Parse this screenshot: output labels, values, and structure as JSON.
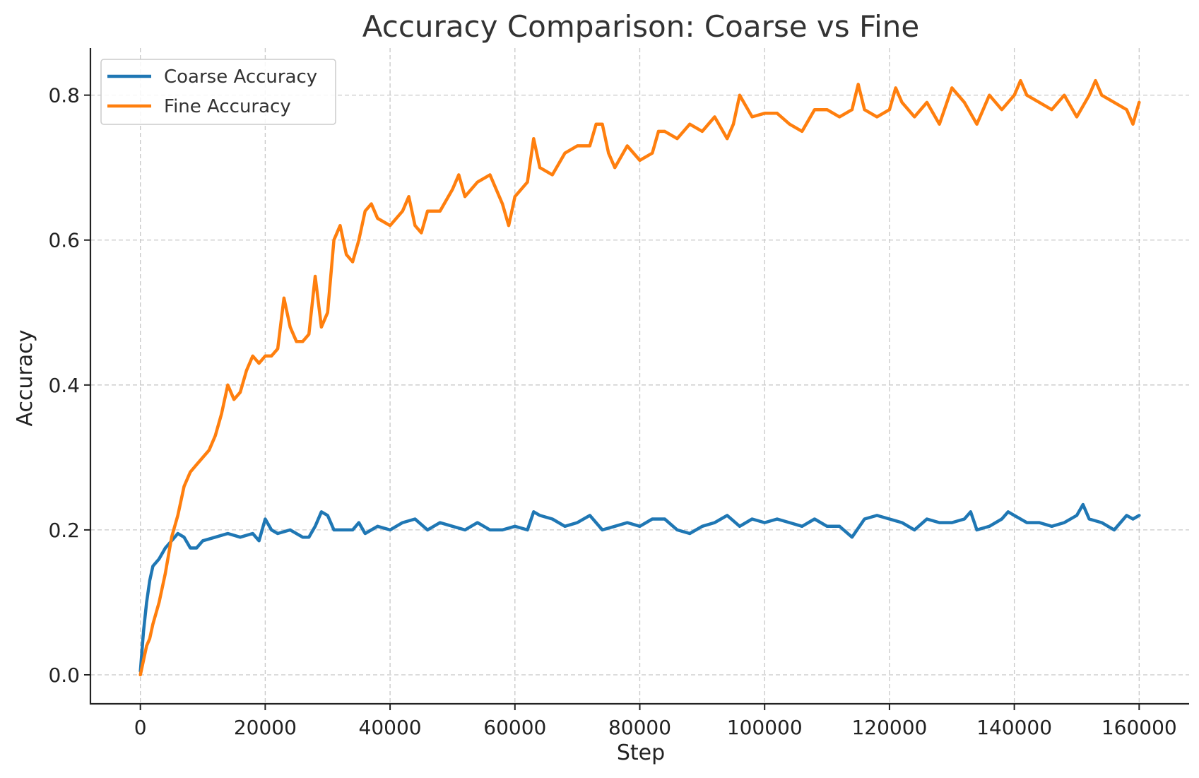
{
  "chart_data": {
    "type": "line",
    "title": "Accuracy Comparison: Coarse vs Fine",
    "xlabel": "Step",
    "ylabel": "Accuracy",
    "xlim": [
      -8000,
      168000
    ],
    "ylim": [
      -0.04,
      0.865
    ],
    "xticks": [
      0,
      20000,
      40000,
      60000,
      80000,
      100000,
      120000,
      140000,
      160000
    ],
    "xtick_labels": [
      "0",
      "20000",
      "40000",
      "60000",
      "80000",
      "100000",
      "120000",
      "140000",
      "160000"
    ],
    "yticks": [
      0.0,
      0.2,
      0.4,
      0.6,
      0.8
    ],
    "ytick_labels": [
      "0.0",
      "0.2",
      "0.4",
      "0.6",
      "0.8"
    ],
    "grid": true,
    "legend": "top-left",
    "series": [
      {
        "name": "Coarse Accuracy",
        "color": "#1f77b4",
        "x": [
          0,
          500,
          1000,
          1500,
          2000,
          3000,
          4000,
          5000,
          6000,
          7000,
          8000,
          9000,
          10000,
          12000,
          14000,
          16000,
          18000,
          19000,
          20000,
          21000,
          22000,
          24000,
          26000,
          27000,
          28000,
          29000,
          30000,
          31000,
          32000,
          34000,
          35000,
          36000,
          38000,
          40000,
          42000,
          44000,
          46000,
          48000,
          50000,
          52000,
          54000,
          56000,
          58000,
          60000,
          62000,
          63000,
          64000,
          66000,
          68000,
          70000,
          72000,
          74000,
          76000,
          78000,
          80000,
          82000,
          84000,
          86000,
          88000,
          90000,
          92000,
          94000,
          96000,
          98000,
          100000,
          102000,
          104000,
          106000,
          108000,
          110000,
          112000,
          114000,
          116000,
          118000,
          120000,
          122000,
          124000,
          126000,
          128000,
          130000,
          132000,
          133000,
          134000,
          136000,
          138000,
          139000,
          140000,
          142000,
          144000,
          146000,
          148000,
          150000,
          151000,
          152000,
          154000,
          156000,
          158000,
          159000,
          160000
        ],
        "y": [
          0.005,
          0.06,
          0.1,
          0.13,
          0.15,
          0.16,
          0.175,
          0.185,
          0.195,
          0.19,
          0.175,
          0.175,
          0.185,
          0.19,
          0.195,
          0.19,
          0.195,
          0.185,
          0.215,
          0.2,
          0.195,
          0.2,
          0.19,
          0.19,
          0.205,
          0.225,
          0.22,
          0.2,
          0.2,
          0.2,
          0.21,
          0.195,
          0.205,
          0.2,
          0.21,
          0.215,
          0.2,
          0.21,
          0.205,
          0.2,
          0.21,
          0.2,
          0.2,
          0.205,
          0.2,
          0.225,
          0.22,
          0.215,
          0.205,
          0.21,
          0.22,
          0.2,
          0.205,
          0.21,
          0.205,
          0.215,
          0.215,
          0.2,
          0.195,
          0.205,
          0.21,
          0.22,
          0.205,
          0.215,
          0.21,
          0.215,
          0.21,
          0.205,
          0.215,
          0.205,
          0.205,
          0.19,
          0.215,
          0.22,
          0.215,
          0.21,
          0.2,
          0.215,
          0.21,
          0.21,
          0.215,
          0.225,
          0.2,
          0.205,
          0.215,
          0.225,
          0.22,
          0.21,
          0.21,
          0.205,
          0.21,
          0.22,
          0.235,
          0.215,
          0.21,
          0.2,
          0.22,
          0.215,
          0.22
        ]
      },
      {
        "name": "Fine Accuracy",
        "color": "#ff7f0e",
        "x": [
          0,
          500,
          1000,
          1500,
          2000,
          3000,
          4000,
          5000,
          6000,
          7000,
          8000,
          9000,
          10000,
          11000,
          12000,
          13000,
          14000,
          15000,
          16000,
          17000,
          18000,
          19000,
          20000,
          21000,
          22000,
          23000,
          24000,
          25000,
          26000,
          27000,
          28000,
          29000,
          30000,
          31000,
          32000,
          33000,
          34000,
          35000,
          36000,
          37000,
          38000,
          40000,
          42000,
          43000,
          44000,
          45000,
          46000,
          48000,
          50000,
          51000,
          52000,
          54000,
          56000,
          58000,
          59000,
          60000,
          62000,
          63000,
          64000,
          66000,
          68000,
          70000,
          72000,
          73000,
          74000,
          75000,
          76000,
          78000,
          80000,
          82000,
          83000,
          84000,
          86000,
          88000,
          90000,
          92000,
          94000,
          95000,
          96000,
          98000,
          100000,
          102000,
          104000,
          106000,
          108000,
          110000,
          112000,
          114000,
          115000,
          116000,
          118000,
          120000,
          121000,
          122000,
          124000,
          126000,
          128000,
          130000,
          132000,
          134000,
          136000,
          138000,
          140000,
          141000,
          142000,
          144000,
          146000,
          148000,
          150000,
          152000,
          153000,
          154000,
          156000,
          158000,
          159000,
          160000
        ],
        "y": [
          0.0,
          0.02,
          0.04,
          0.05,
          0.07,
          0.1,
          0.14,
          0.19,
          0.22,
          0.26,
          0.28,
          0.29,
          0.3,
          0.31,
          0.33,
          0.36,
          0.4,
          0.38,
          0.39,
          0.42,
          0.44,
          0.43,
          0.44,
          0.44,
          0.45,
          0.52,
          0.48,
          0.46,
          0.46,
          0.47,
          0.55,
          0.48,
          0.5,
          0.6,
          0.62,
          0.58,
          0.57,
          0.6,
          0.64,
          0.65,
          0.63,
          0.62,
          0.64,
          0.66,
          0.62,
          0.61,
          0.64,
          0.64,
          0.67,
          0.69,
          0.66,
          0.68,
          0.69,
          0.65,
          0.62,
          0.66,
          0.68,
          0.74,
          0.7,
          0.69,
          0.72,
          0.73,
          0.73,
          0.76,
          0.76,
          0.72,
          0.7,
          0.73,
          0.71,
          0.72,
          0.75,
          0.75,
          0.74,
          0.76,
          0.75,
          0.77,
          0.74,
          0.76,
          0.8,
          0.77,
          0.775,
          0.775,
          0.76,
          0.75,
          0.78,
          0.78,
          0.77,
          0.78,
          0.815,
          0.78,
          0.77,
          0.78,
          0.81,
          0.79,
          0.77,
          0.79,
          0.76,
          0.81,
          0.79,
          0.76,
          0.8,
          0.78,
          0.8,
          0.82,
          0.8,
          0.79,
          0.78,
          0.8,
          0.77,
          0.8,
          0.82,
          0.8,
          0.79,
          0.78,
          0.76,
          0.79
        ]
      }
    ]
  }
}
